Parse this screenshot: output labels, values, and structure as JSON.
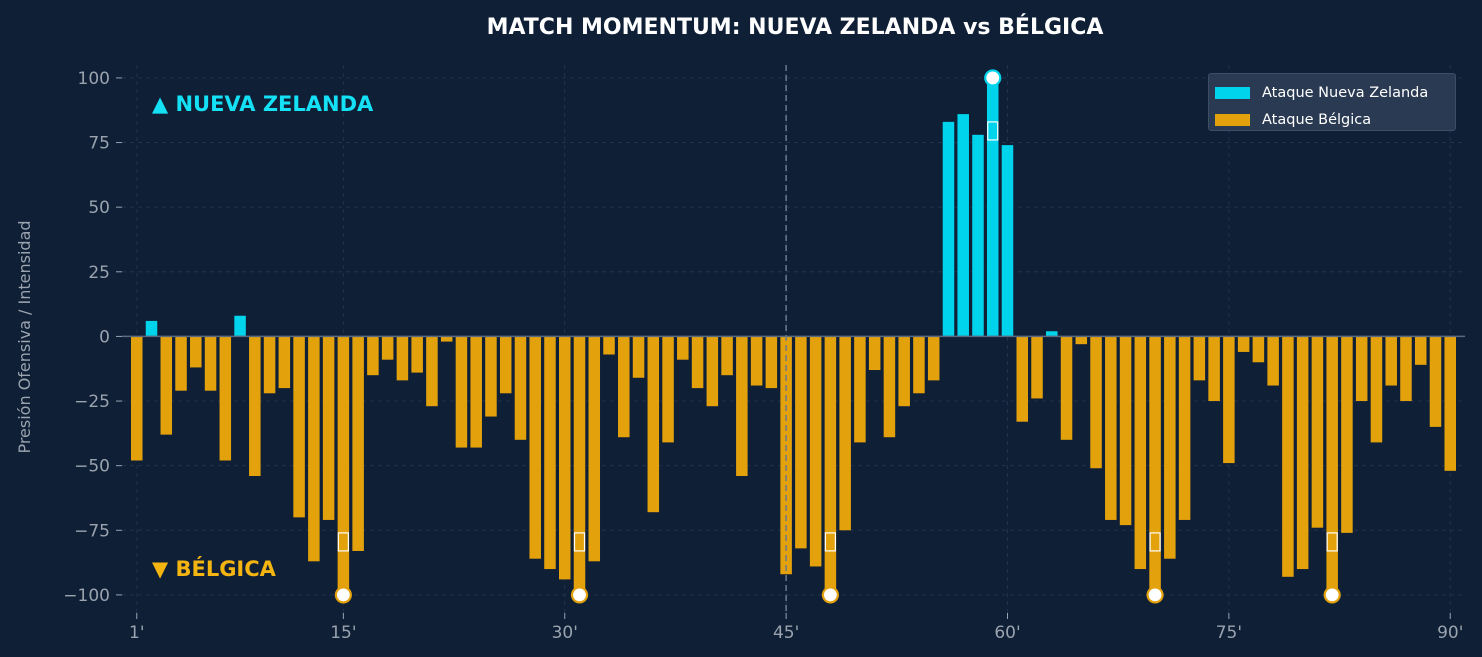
{
  "colors": {
    "background": "#0f1f36",
    "nz": "#00d4ec",
    "bel": "#e3a20c",
    "nz_label": "#14e1f5",
    "bel_label": "#f5b510",
    "grid": "#20324d",
    "tick_text": "#9aa3ae"
  },
  "chart_data": {
    "type": "bar",
    "title": "MATCH MOMENTUM: NUEVA ZELANDA vs BÉLGICA",
    "xlabel": "",
    "ylabel": "Presión Ofensiva / Intensidad",
    "xlim": [
      0,
      91
    ],
    "ylim": [
      -107,
      105
    ],
    "x_ticks": [
      1,
      15,
      30,
      45,
      60,
      75,
      90
    ],
    "x_tick_labels": [
      "1'",
      "15'",
      "30'",
      "45'",
      "60'",
      "75'",
      "90'"
    ],
    "y_ticks": [
      100,
      75,
      50,
      25,
      0,
      -25,
      -50,
      -75,
      -100
    ],
    "y_tick_labels": [
      "100",
      "75",
      "50",
      "25",
      "0",
      "−25",
      "−50",
      "−75",
      "−100"
    ],
    "grid": true,
    "halftime_line": 45,
    "legend_position": "top-right",
    "minutes": [
      1,
      2,
      3,
      4,
      5,
      6,
      7,
      8,
      9,
      10,
      11,
      12,
      13,
      14,
      15,
      16,
      17,
      18,
      19,
      20,
      21,
      22,
      23,
      24,
      25,
      26,
      27,
      28,
      29,
      30,
      31,
      32,
      33,
      34,
      35,
      36,
      37,
      38,
      39,
      40,
      41,
      42,
      43,
      44,
      45,
      46,
      47,
      48,
      49,
      50,
      51,
      52,
      53,
      54,
      55,
      56,
      57,
      58,
      59,
      60,
      61,
      62,
      63,
      64,
      65,
      66,
      67,
      68,
      69,
      70,
      71,
      72,
      73,
      74,
      75,
      76,
      77,
      78,
      79,
      80,
      81,
      82,
      83,
      84,
      85,
      86,
      87,
      88,
      89,
      90
    ],
    "values": [
      -48,
      6,
      -38,
      -21,
      -12,
      -21,
      -48,
      8,
      -54,
      -22,
      -20,
      -70,
      -87,
      -71,
      -100,
      -83,
      -15,
      -9,
      -17,
      -14,
      -27,
      -2,
      -43,
      -43,
      -31,
      -22,
      -40,
      -86,
      -90,
      -94,
      -100,
      -87,
      -7,
      -39,
      -16,
      -68,
      -41,
      -9,
      -20,
      -27,
      -15,
      -54,
      -19,
      -20,
      -92,
      -82,
      -89,
      -100,
      -75,
      -41,
      -13,
      -39,
      -27,
      -22,
      -17,
      83,
      86,
      78,
      100,
      74,
      -33,
      -24,
      2,
      -40,
      -3,
      -51,
      -71,
      -73,
      -90,
      -100,
      -86,
      -71,
      -17,
      -25,
      -49,
      -6,
      -10,
      -19,
      -93,
      -90,
      -74,
      -100,
      -76,
      -25,
      -41,
      -19,
      -25,
      -11,
      -35,
      -52
    ],
    "goal_minutes": [
      15,
      31,
      48,
      59,
      70,
      82
    ],
    "series": [
      {
        "name": "Ataque Nueva Zelanda",
        "color": "#00d4ec"
      },
      {
        "name": "Ataque Bélgica",
        "color": "#e3a20c"
      }
    ],
    "annotations": [
      {
        "text": "▲ NUEVA ZELANDA",
        "color": "#14e1f5"
      },
      {
        "text": "▼ BÉLGICA",
        "color": "#f5b510"
      }
    ]
  }
}
